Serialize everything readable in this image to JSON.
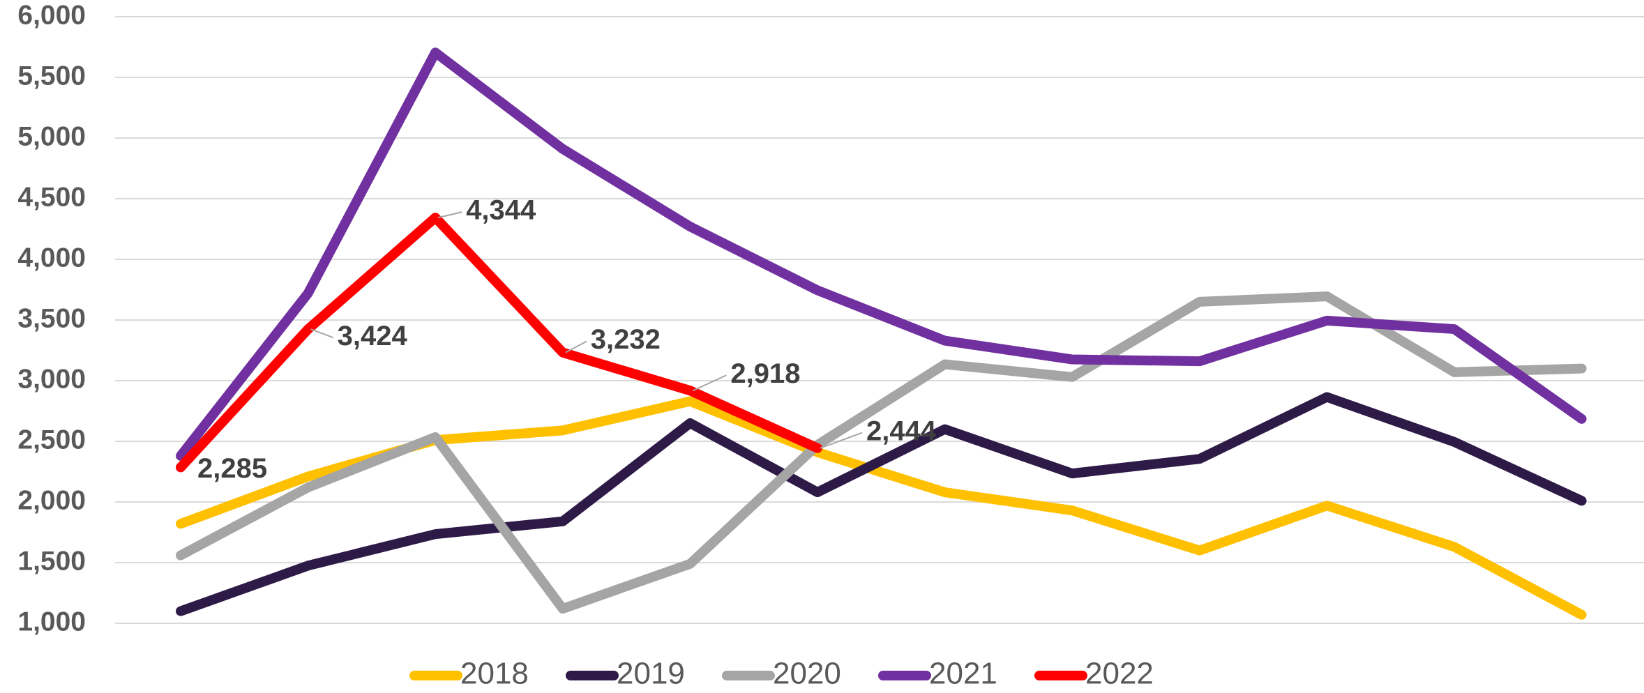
{
  "chart_data": {
    "type": "line",
    "categories": [
      null,
      null,
      null,
      null,
      null,
      null,
      null,
      null,
      null,
      null,
      null,
      null
    ],
    "ylim": [
      1000,
      6000
    ],
    "yticks": [
      {
        "value": 1000,
        "label": "1,000"
      },
      {
        "value": 1500,
        "label": "1,500"
      },
      {
        "value": 2000,
        "label": "2,000"
      },
      {
        "value": 2500,
        "label": "2,500"
      },
      {
        "value": 3000,
        "label": "3,000"
      },
      {
        "value": 3500,
        "label": "3,500"
      },
      {
        "value": 4000,
        "label": "4,000"
      },
      {
        "value": 4500,
        "label": "4,500"
      },
      {
        "value": 5000,
        "label": "5,000"
      },
      {
        "value": 5500,
        "label": "5,500"
      },
      {
        "value": 6000,
        "label": "6,000"
      }
    ],
    "grid": true,
    "legend": "bottom",
    "series": [
      {
        "name": "2018",
        "color": "#ffc000",
        "values": [
          1820,
          2210,
          2510,
          2590,
          2830,
          2410,
          2080,
          1930,
          1600,
          1970,
          1630,
          1070
        ]
      },
      {
        "name": "2019",
        "color": "#2e1a47",
        "values": [
          1100,
          1475,
          1735,
          1840,
          2650,
          2080,
          2600,
          2235,
          2355,
          2865,
          2495,
          2010
        ]
      },
      {
        "name": "2020",
        "color": "#a5a5a5",
        "values": [
          1560,
          2120,
          2535,
          1120,
          1490,
          2470,
          3135,
          3030,
          3650,
          3695,
          3070,
          3100
        ]
      },
      {
        "name": "2021",
        "color": "#7030a0",
        "values": [
          2380,
          3720,
          5705,
          4910,
          4270,
          3745,
          3330,
          3175,
          3160,
          3495,
          3425,
          2685
        ]
      },
      {
        "name": "2022",
        "color": "#ff0000",
        "values": [
          2285,
          3424,
          4344,
          3232,
          2918,
          2444,
          null,
          null,
          null,
          null,
          null,
          null
        ],
        "value_labels": [
          "2,285",
          "3,424",
          "4,344",
          "3,232",
          "2,918",
          "2,444",
          null,
          null,
          null,
          null,
          null,
          null
        ]
      }
    ]
  }
}
